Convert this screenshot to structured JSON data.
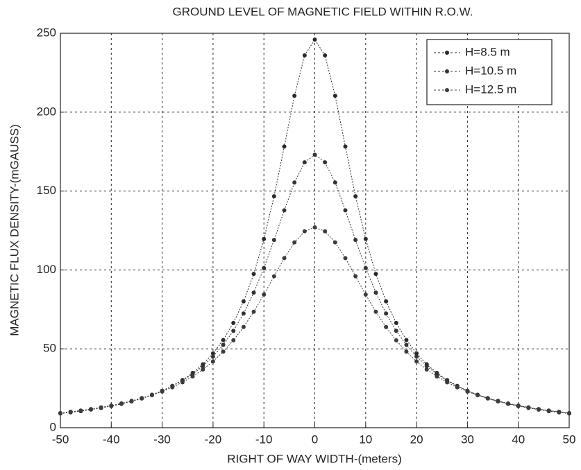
{
  "chart_data": {
    "type": "line",
    "title": "GROUND LEVEL OF MAGNETIC FIELD WITHIN R.O.W.",
    "xlabel": "RIGHT OF WAY WIDTH-(meters)",
    "ylabel": "MAGNETIC FLUX DENSITY-(mGAUSS)",
    "x": [
      -50,
      -48,
      -46,
      -44,
      -42,
      -40,
      -38,
      -36,
      -34,
      -32,
      -30,
      -28,
      -26,
      -24,
      -22,
      -20,
      -18,
      -16,
      -14,
      -12,
      -10,
      -8,
      -6,
      -4,
      -2,
      0,
      2,
      4,
      6,
      8,
      10,
      12,
      14,
      16,
      18,
      20,
      22,
      24,
      26,
      28,
      30,
      32,
      34,
      36,
      38,
      40,
      42,
      44,
      46,
      48,
      50
    ],
    "series": [
      {
        "name": "H=8.5 m",
        "color": "#2a2a2a",
        "values": [
          9.0,
          9.7,
          10.5,
          11.5,
          12.5,
          13.7,
          15.1,
          16.7,
          18.6,
          20.8,
          23.4,
          26.5,
          30.2,
          34.7,
          40.2,
          47.1,
          55.6,
          66.4,
          80.1,
          97.5,
          119.6,
          146.7,
          178.2,
          210.4,
          236.0,
          246.0,
          236.0,
          210.4,
          178.2,
          146.7,
          119.6,
          97.5,
          80.1,
          66.4,
          55.6,
          47.1,
          40.2,
          34.7,
          30.2,
          26.5,
          23.4,
          20.8,
          18.6,
          16.7,
          15.1,
          13.7,
          12.5,
          11.5,
          10.5,
          9.7,
          9.0
        ]
      },
      {
        "name": "H=10.5 m",
        "color": "#333333",
        "values": [
          9.2,
          10.0,
          10.8,
          11.7,
          12.8,
          14.0,
          15.4,
          17.0,
          18.8,
          20.9,
          23.4,
          26.4,
          29.9,
          34.0,
          39.0,
          45.1,
          52.5,
          61.4,
          72.4,
          85.6,
          101.2,
          119.0,
          137.8,
          155.4,
          168.2,
          173.0,
          168.2,
          155.4,
          137.8,
          119.0,
          101.2,
          85.6,
          72.4,
          61.4,
          52.5,
          45.1,
          39.0,
          34.0,
          29.9,
          26.4,
          23.4,
          20.9,
          18.8,
          17.0,
          15.4,
          14.0,
          12.8,
          11.7,
          10.8,
          10.0,
          9.2
        ]
      },
      {
        "name": "H=12.5 m",
        "color": "#3c3c3c",
        "values": [
          9.3,
          10.1,
          10.9,
          11.8,
          12.9,
          14.0,
          15.3,
          16.7,
          18.5,
          20.6,
          22.9,
          25.6,
          28.8,
          32.5,
          36.9,
          42.0,
          48.2,
          55.4,
          63.8,
          73.5,
          84.4,
          96.0,
          107.5,
          117.5,
          124.5,
          127.0,
          124.5,
          117.5,
          107.5,
          96.0,
          84.4,
          73.5,
          63.8,
          55.4,
          48.2,
          42.0,
          36.9,
          32.5,
          28.8,
          25.6,
          22.9,
          20.6,
          18.5,
          16.7,
          15.3,
          14.0,
          12.9,
          11.8,
          10.9,
          10.1,
          9.3
        ]
      }
    ],
    "xlim": [
      -50,
      50
    ],
    "xticks": [
      -50,
      -40,
      -30,
      -20,
      -10,
      0,
      10,
      20,
      30,
      40,
      50
    ],
    "ylim": [
      0,
      250
    ],
    "yticks": [
      0,
      50,
      100,
      150,
      200,
      250
    ],
    "grid": true,
    "legend": "upper right"
  }
}
